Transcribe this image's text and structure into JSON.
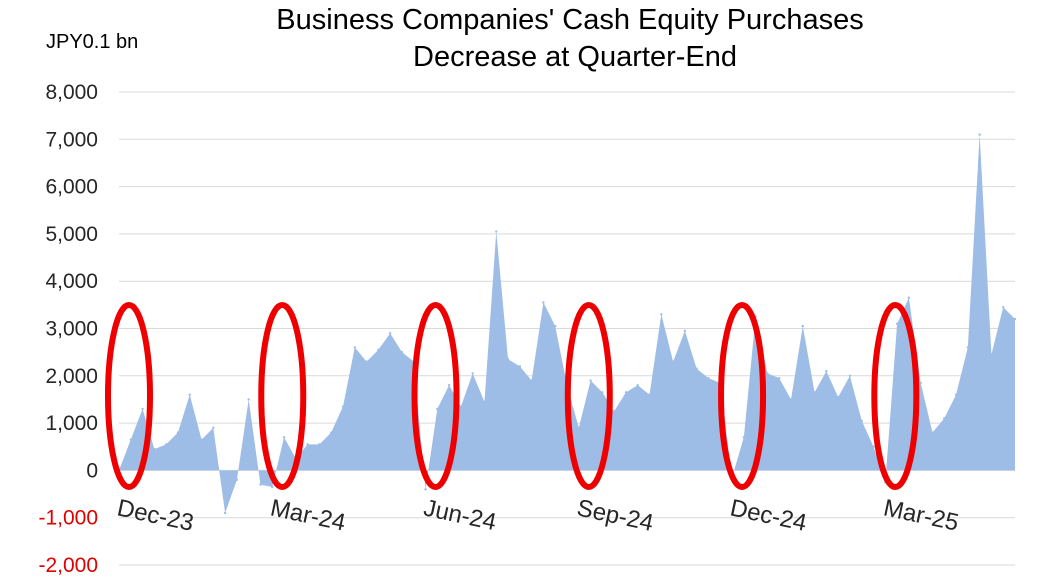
{
  "chart_data": {
    "type": "area",
    "title": [
      "Business Companies' Cash Equity Purchases",
      "Decrease at Quarter-End"
    ],
    "unit_label": "JPY0.1 bn",
    "ylim": [
      -2000,
      8000
    ],
    "yticks": [
      "8,000",
      "7,000",
      "6,000",
      "5,000",
      "4,000",
      "3,000",
      "2,000",
      "1,000",
      "0",
      "-1,000",
      "-2,000"
    ],
    "ytick_values": [
      8000,
      7000,
      6000,
      5000,
      4000,
      3000,
      2000,
      1000,
      0,
      -1000,
      -2000
    ],
    "xticks": [
      {
        "label": "Dec-23",
        "index": 0
      },
      {
        "label": "Mar-24",
        "index": 13
      },
      {
        "label": "Jun-24",
        "index": 26
      },
      {
        "label": "Sep-24",
        "index": 39
      },
      {
        "label": "Dec-24",
        "index": 52
      },
      {
        "label": "Mar-25",
        "index": 65
      }
    ],
    "highlight_indices": [
      0,
      13,
      26,
      39,
      52,
      65
    ],
    "grid": true,
    "legend": "none",
    "colors": {
      "area": "#9dbde6",
      "circle": "#ee0000",
      "negative_tick": "#e00000",
      "tick": "#262626"
    },
    "values": [
      0,
      650,
      1300,
      450,
      550,
      800,
      1600,
      650,
      900,
      -900,
      -200,
      1500,
      -300,
      -350,
      700,
      250,
      550,
      550,
      800,
      1350,
      2600,
      2300,
      2550,
      2900,
      2500,
      2300,
      -400,
      1300,
      1800,
      1350,
      2050,
      1450,
      5050,
      2350,
      2200,
      1900,
      3550,
      3050,
      1800,
      900,
      1900,
      1650,
      1250,
      1650,
      1800,
      1600,
      3300,
      2300,
      2950,
      2150,
      1950,
      1850,
      -150,
      700,
      3250,
      2050,
      1950,
      1500,
      3050,
      1650,
      2100,
      1550,
      2000,
      1050,
      500,
      -250,
      3100,
      3650,
      1850,
      800,
      1100,
      1600,
      2600,
      7100,
      2450,
      3450,
      3200
    ]
  }
}
